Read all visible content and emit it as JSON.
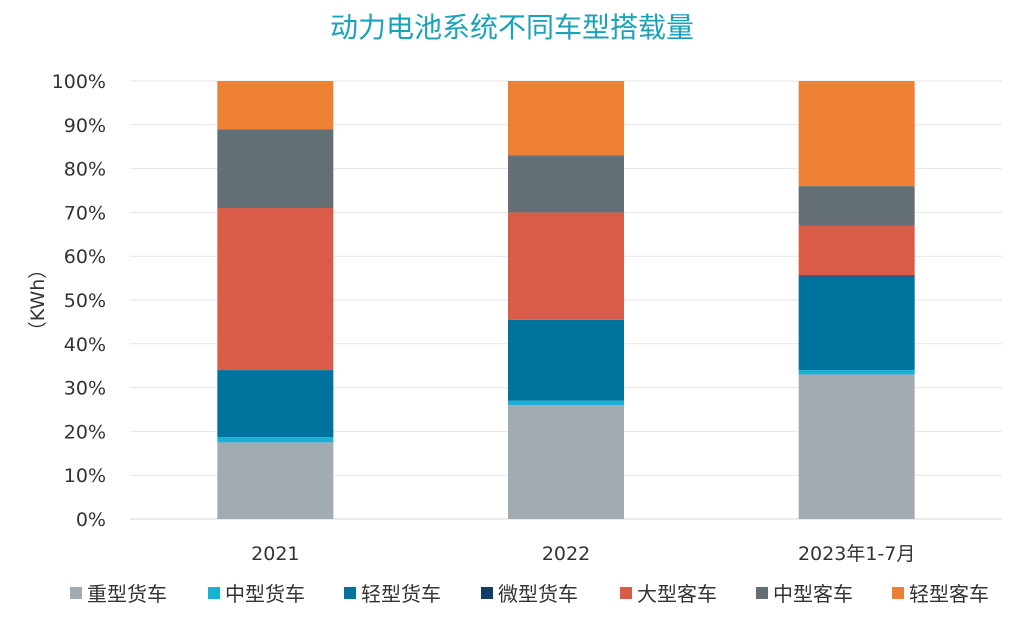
{
  "chart_data": {
    "type": "bar",
    "stacked": true,
    "title": "动力电池系统不同车型搭载量",
    "ylabel": "（KWh）",
    "ylim": [
      0,
      100
    ],
    "yticks": [
      "0%",
      "10%",
      "20%",
      "30%",
      "40%",
      "50%",
      "60%",
      "70%",
      "80%",
      "90%",
      "100%"
    ],
    "grid": true,
    "legend": "bottom",
    "categories": [
      "2021",
      "2022",
      "2023年1-7月"
    ],
    "series": [
      {
        "name": "重型货车",
        "color": "#a2abb1",
        "values": [
          17.5,
          26,
          33
        ]
      },
      {
        "name": "中型货车",
        "color": "#1bb0d6",
        "values": [
          1.2,
          1,
          1
        ]
      },
      {
        "name": "轻型货车",
        "color": "#00729e",
        "values": [
          15.3,
          18.5,
          21.3
        ]
      },
      {
        "name": "微型货车",
        "color": "#123a6b",
        "values": [
          0,
          0,
          0.3
        ]
      },
      {
        "name": "大型客车",
        "color": "#d95b48",
        "values": [
          37,
          24.5,
          11.4
        ]
      },
      {
        "name": "中型客车",
        "color": "#636e75",
        "values": [
          18,
          13,
          9
        ]
      },
      {
        "name": "轻型客车",
        "color": "#ed8032",
        "values": [
          11,
          17,
          24
        ]
      }
    ]
  }
}
